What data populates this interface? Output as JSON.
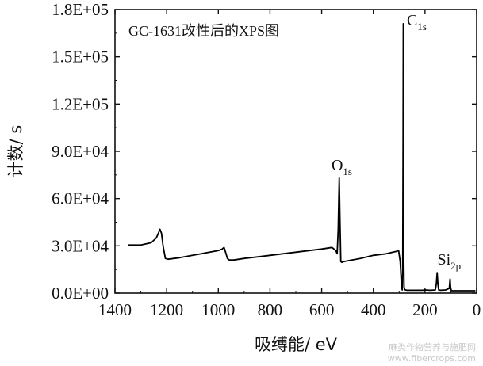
{
  "chart_data": {
    "type": "line",
    "title": "GC-1631改性后的XPS图",
    "xlabel": "吸缚能/ eV",
    "ylabel": "计数/ s",
    "xlim": [
      1400,
      0
    ],
    "ylim": [
      0,
      180000
    ],
    "x_reversed": true,
    "x_ticks": [
      1400,
      1200,
      1000,
      800,
      600,
      400,
      200,
      0
    ],
    "y_ticks": [
      0,
      30000,
      60000,
      90000,
      120000,
      150000,
      180000
    ],
    "x_tick_labels": [
      "1400",
      "1200",
      "1000",
      "800",
      "600",
      "400",
      "200",
      "0"
    ],
    "y_tick_labels": [
      "0.0E+00",
      "3.0E+04",
      "6.0E+04",
      "9.0E+04",
      "1.2E+05",
      "1.5E+05",
      "1.8E+05"
    ],
    "grid": false,
    "series": [
      {
        "color": "#000000",
        "x": [
          1350,
          1300,
          1260,
          1240,
          1232,
          1226,
          1220,
          1214,
          1205,
          1195,
          1150,
          1100,
          1050,
          1000,
          985,
          978,
          972,
          965,
          958,
          940,
          900,
          850,
          800,
          750,
          700,
          650,
          600,
          560,
          545,
          540,
          536,
          532,
          529,
          526,
          522,
          515,
          500,
          450,
          400,
          350,
          310,
          302,
          296,
          292,
          290,
          288,
          286,
          285,
          284,
          283,
          282,
          281,
          279,
          276,
          270,
          260,
          240,
          210,
          200,
          180,
          160,
          156,
          153,
          150,
          147,
          140,
          120,
          106,
          103,
          101,
          99,
          96,
          80,
          60,
          40,
          20,
          10,
          5
        ],
        "y": [
          30500,
          30500,
          32000,
          35000,
          38000,
          40500,
          38000,
          30000,
          22000,
          21500,
          22500,
          24000,
          25500,
          27000,
          28000,
          29000,
          26000,
          22000,
          21000,
          21000,
          22000,
          23000,
          24000,
          25000,
          26000,
          27000,
          28000,
          29000,
          27000,
          25000,
          40000,
          73000,
          45000,
          20000,
          19500,
          20000,
          20500,
          22000,
          24000,
          25000,
          26500,
          27000,
          20000,
          8000,
          4000,
          2000,
          20000,
          92000,
          171000,
          92000,
          20000,
          4000,
          2500,
          2000,
          1800,
          1800,
          1800,
          1800,
          2000,
          1800,
          2000,
          6000,
          13000,
          6000,
          2000,
          1800,
          2000,
          3000,
          9000,
          4000,
          2000,
          1500,
          1500,
          1500,
          1500,
          1500,
          1500,
          1500
        ]
      }
    ],
    "annotations": [
      {
        "label": "C",
        "sub": "1s",
        "x": 270,
        "y": 170000
      },
      {
        "label": "O",
        "sub": "1s",
        "x": 562,
        "y": 78000
      },
      {
        "label": "Si",
        "sub": "2p",
        "x": 152,
        "y": 18000
      }
    ]
  },
  "watermark": {
    "line1": "麻类作物营养与施肥网",
    "line2": "www.fibercrops.com"
  }
}
